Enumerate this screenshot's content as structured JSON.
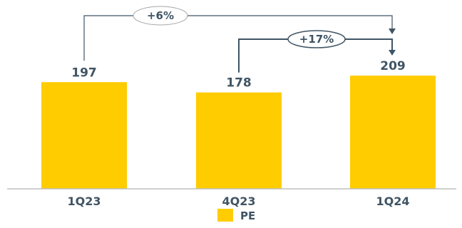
{
  "chart_data": {
    "type": "bar",
    "categories": [
      "1Q23",
      "4Q23",
      "1Q24"
    ],
    "series": [
      {
        "name": "PE",
        "values": [
          197,
          178,
          209
        ]
      }
    ],
    "ylim": [
      0,
      240
    ],
    "grid": false,
    "legend_position": "bottom",
    "annotations": [
      {
        "label": "+6%",
        "from": "1Q23",
        "to": "1Q24"
      },
      {
        "label": "+17%",
        "from": "4Q23",
        "to": "1Q24"
      }
    ],
    "colors": {
      "bar": "#FFCC00",
      "text": "#3F5464",
      "axis": "#BFBFBF",
      "connector": "#3F5464",
      "oval_stroke": "#A6A6A6"
    }
  }
}
